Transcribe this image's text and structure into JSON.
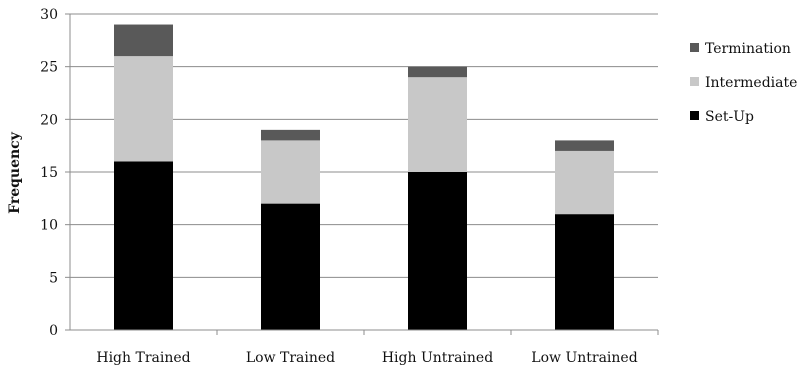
{
  "chart_data": {
    "type": "bar",
    "stacked": true,
    "title": "",
    "xlabel": "",
    "ylabel": "Frequency",
    "ylim": [
      0,
      30
    ],
    "yticks": [
      0,
      5,
      10,
      15,
      20,
      25,
      30
    ],
    "grid": true,
    "legend_position": "right",
    "categories": [
      "High Trained",
      "Low Trained",
      "High Untrained",
      "Low Untrained"
    ],
    "series": [
      {
        "name": "Set-Up",
        "color": "#000000",
        "values": [
          16,
          12,
          15,
          11
        ]
      },
      {
        "name": "Intermediate",
        "color": "#c8c8c8",
        "values": [
          10,
          6,
          9,
          6
        ]
      },
      {
        "name": "Termination",
        "color": "#595959",
        "values": [
          3,
          1,
          1,
          1
        ]
      }
    ],
    "legend_order": [
      "Termination",
      "Intermediate",
      "Set-Up"
    ]
  }
}
